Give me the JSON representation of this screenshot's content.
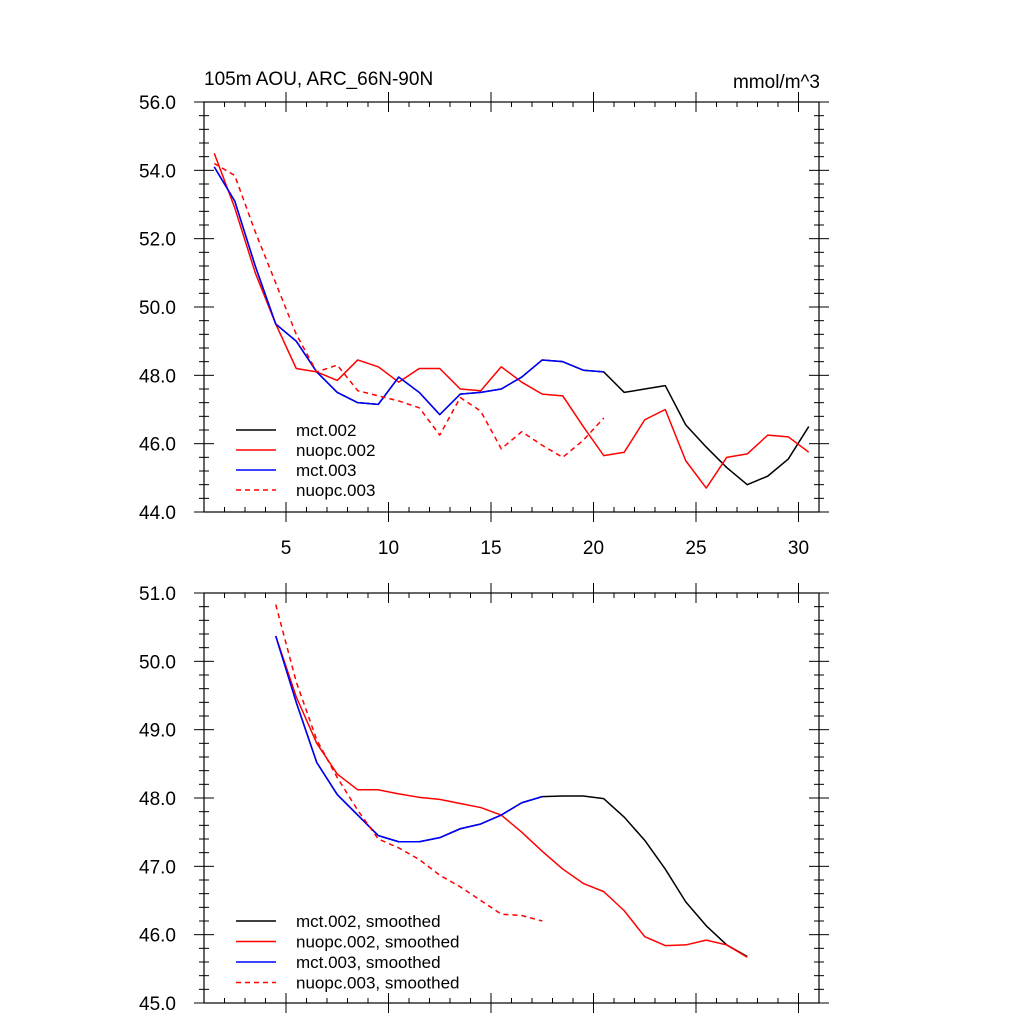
{
  "chart_data": [
    {
      "type": "line",
      "title": "105m AOU, ARC_66N-90N",
      "units": "mmol/m^3",
      "xlim": [
        1,
        31
      ],
      "ylim": [
        44,
        56
      ],
      "xticks": [
        5,
        10,
        15,
        20,
        25,
        30
      ],
      "xtick_labels": [
        "5",
        "10",
        "15",
        "20",
        "25",
        "30"
      ],
      "yticks": [
        44,
        46,
        48,
        50,
        52,
        54,
        56
      ],
      "ytick_labels": [
        "44.0",
        "46.0",
        "48.0",
        "50.0",
        "52.0",
        "54.0",
        "56.0"
      ],
      "legend_position": "bottom-left",
      "series": [
        {
          "name": "mct.002",
          "color": "#000000",
          "dash": false,
          "x": [
            1.5,
            2.5,
            3.5,
            4.5,
            5.5,
            6.5,
            7.5,
            8.5,
            9.5,
            10.5,
            11.5,
            12.5,
            13.5,
            14.5,
            15.5,
            16.5,
            17.5,
            18.5,
            19.5,
            20.5,
            21.5,
            22.5,
            23.5,
            24.5,
            25.5,
            26.5,
            27.5,
            28.5,
            29.5,
            30.5
          ],
          "y": [
            54.1,
            53.1,
            51.2,
            49.5,
            49.0,
            48.1,
            47.5,
            47.2,
            47.15,
            47.95,
            47.5,
            46.85,
            47.45,
            47.5,
            47.6,
            47.95,
            48.45,
            48.4,
            48.15,
            48.1,
            47.5,
            47.6,
            47.7,
            46.55,
            45.9,
            45.3,
            44.8,
            45.05,
            45.55,
            46.5
          ]
        },
        {
          "name": "nuopc.002",
          "color": "#ff0000",
          "dash": false,
          "x": [
            1.5,
            2.5,
            3.5,
            4.5,
            5.5,
            6.5,
            7.5,
            8.5,
            9.5,
            10.5,
            11.5,
            12.5,
            13.5,
            14.5,
            15.5,
            16.5,
            17.5,
            18.5,
            19.5,
            20.5,
            21.5,
            22.5,
            23.5,
            24.5,
            25.5,
            26.5,
            27.5,
            28.5,
            29.5,
            30.5
          ],
          "y": [
            54.5,
            52.9,
            51.0,
            49.5,
            48.2,
            48.1,
            47.85,
            48.45,
            48.25,
            47.8,
            48.2,
            48.2,
            47.6,
            47.55,
            48.25,
            47.8,
            47.45,
            47.4,
            46.5,
            45.65,
            45.75,
            46.7,
            47.0,
            45.5,
            44.7,
            45.6,
            45.7,
            46.25,
            46.2,
            45.75
          ]
        },
        {
          "name": "mct.003",
          "color": "#0000ff",
          "dash": false,
          "x": [
            1.5,
            2.5,
            3.5,
            4.5,
            5.5,
            6.5,
            7.5,
            8.5,
            9.5,
            10.5,
            11.5,
            12.5,
            13.5,
            14.5,
            15.5,
            16.5,
            17.5,
            18.5,
            19.5,
            20.5
          ],
          "y": [
            54.1,
            53.1,
            51.2,
            49.5,
            49.0,
            48.1,
            47.5,
            47.2,
            47.15,
            47.95,
            47.5,
            46.85,
            47.45,
            47.5,
            47.6,
            47.95,
            48.45,
            48.4,
            48.15,
            48.1
          ]
        },
        {
          "name": "nuopc.003",
          "color": "#ff0000",
          "dash": true,
          "x": [
            1.5,
            2.5,
            3.5,
            4.5,
            5.5,
            6.5,
            7.5,
            8.5,
            9.5,
            10.5,
            11.5,
            12.5,
            13.5,
            14.5,
            15.5,
            16.5,
            17.5,
            18.5,
            19.5,
            20.5
          ],
          "y": [
            54.2,
            53.85,
            52.2,
            50.7,
            49.2,
            48.1,
            48.3,
            47.55,
            47.4,
            47.25,
            47.05,
            46.25,
            47.35,
            46.95,
            45.85,
            46.35,
            45.95,
            45.6,
            46.1,
            46.75
          ]
        }
      ]
    },
    {
      "type": "line",
      "title": "",
      "xlim": [
        1,
        31
      ],
      "ylim": [
        45,
        51
      ],
      "yticks": [
        45,
        46,
        47,
        48,
        49,
        50,
        51
      ],
      "ytick_labels": [
        "45.0",
        "46.0",
        "47.0",
        "48.0",
        "49.0",
        "50.0",
        "51.0"
      ],
      "xticks": [
        5,
        10,
        15,
        20,
        25,
        30
      ],
      "legend_position": "bottom-left",
      "series": [
        {
          "name": "mct.002, smoothed",
          "color": "#000000",
          "dash": false,
          "x": [
            4.5,
            5.5,
            6.5,
            7.5,
            8.5,
            9.5,
            10.5,
            11.5,
            12.5,
            13.5,
            14.5,
            15.5,
            16.5,
            17.5,
            18.5,
            19.5,
            20.5,
            21.5,
            22.5,
            23.5,
            24.5,
            25.5,
            26.5,
            27.5
          ],
          "y": [
            50.37,
            49.4,
            48.52,
            48.05,
            47.75,
            47.45,
            47.36,
            47.36,
            47.42,
            47.55,
            47.62,
            47.75,
            47.93,
            48.02,
            48.03,
            48.03,
            47.99,
            47.72,
            47.38,
            46.96,
            46.48,
            46.13,
            45.85,
            45.68
          ]
        },
        {
          "name": "nuopc.002, smoothed",
          "color": "#ff0000",
          "dash": false,
          "x": [
            4.5,
            5.5,
            6.5,
            7.5,
            8.5,
            9.5,
            10.5,
            11.5,
            12.5,
            13.5,
            14.5,
            15.5,
            16.5,
            17.5,
            18.5,
            19.5,
            20.5,
            21.5,
            22.5,
            23.5,
            24.5,
            25.5,
            26.5,
            27.5
          ],
          "y": [
            50.37,
            49.48,
            48.8,
            48.35,
            48.12,
            48.12,
            48.06,
            48.01,
            47.98,
            47.92,
            47.86,
            47.75,
            47.5,
            47.22,
            46.96,
            46.75,
            46.63,
            46.35,
            45.97,
            45.84,
            45.85,
            45.92,
            45.85,
            45.67
          ]
        },
        {
          "name": "mct.003, smoothed",
          "color": "#0000ff",
          "dash": false,
          "x": [
            4.5,
            5.5,
            6.5,
            7.5,
            8.5,
            9.5,
            10.5,
            11.5,
            12.5,
            13.5,
            14.5,
            15.5,
            16.5,
            17.5
          ],
          "y": [
            50.37,
            49.4,
            48.52,
            48.05,
            47.75,
            47.45,
            47.36,
            47.36,
            47.42,
            47.55,
            47.62,
            47.75,
            47.93,
            48.02
          ]
        },
        {
          "name": "nuopc.003, smoothed",
          "color": "#ff0000",
          "dash": true,
          "x": [
            4.5,
            5.5,
            6.5,
            7.5,
            8.5,
            9.5,
            10.5,
            11.5,
            12.5,
            13.5,
            14.5,
            15.5,
            16.5,
            17.5
          ],
          "y": [
            50.83,
            49.7,
            48.85,
            48.3,
            47.82,
            47.4,
            47.27,
            47.1,
            46.87,
            46.7,
            46.5,
            46.3,
            46.28,
            46.2
          ]
        }
      ]
    }
  ]
}
